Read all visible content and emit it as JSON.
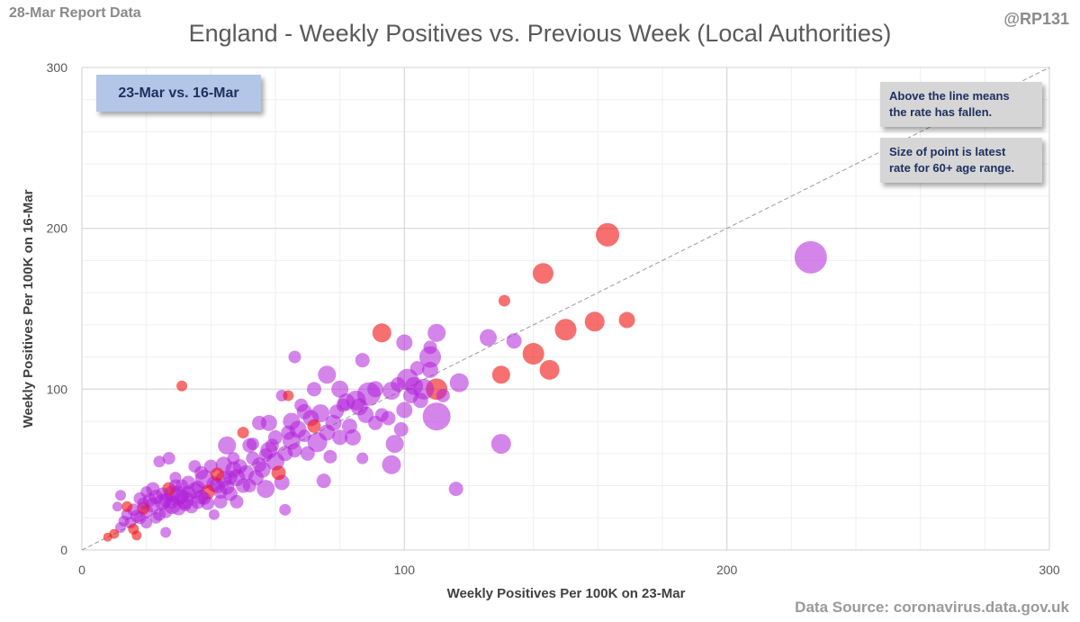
{
  "header": {
    "report_label": "28-Mar Report Data",
    "handle": "@RP131",
    "title": "England - Weekly Positives vs. Previous Week (Local Authorities)"
  },
  "footer": {
    "source": "Data Source: coronavirus.data.gov.uk"
  },
  "annotations": {
    "date_range": "23-Mar vs. 16-Mar",
    "note_above_line": [
      "Above the line means",
      "the rate has fallen."
    ],
    "note_size": [
      "Size of point is latest",
      "rate for 60+ age range."
    ]
  },
  "colors": {
    "purple": "#b020d8",
    "red": "#f01010",
    "grid_major": "#d9d9d9",
    "grid_minor": "#efefef",
    "diagonal": "#9a9a9a"
  },
  "chart_data": {
    "type": "scatter",
    "title": "England - Weekly Positives vs. Previous Week (Local Authorities)",
    "xlabel": "Weekly Positives Per 100K on 23-Mar",
    "ylabel": "Weekly Positives Per 100K on 16-Mar",
    "xlim": [
      0,
      300
    ],
    "ylim": [
      0,
      300
    ],
    "xticks": [
      0,
      100,
      200,
      300
    ],
    "yticks": [
      0,
      100,
      200,
      300
    ],
    "minor_step": 20,
    "reference_line": "y = x",
    "points": [
      {
        "x": 226,
        "y": 182,
        "s": 30,
        "c": "p"
      },
      {
        "x": 163,
        "y": 196,
        "s": 20,
        "c": "r"
      },
      {
        "x": 143,
        "y": 172,
        "s": 17,
        "c": "r"
      },
      {
        "x": 131,
        "y": 155,
        "s": 7,
        "c": "r"
      },
      {
        "x": 169,
        "y": 143,
        "s": 12,
        "c": "r"
      },
      {
        "x": 159,
        "y": 142,
        "s": 16,
        "c": "r"
      },
      {
        "x": 150,
        "y": 137,
        "s": 18,
        "c": "r"
      },
      {
        "x": 140,
        "y": 122,
        "s": 18,
        "c": "r"
      },
      {
        "x": 145,
        "y": 112,
        "s": 16,
        "c": "r"
      },
      {
        "x": 130,
        "y": 109,
        "s": 14,
        "c": "r"
      },
      {
        "x": 93,
        "y": 135,
        "s": 15,
        "c": "r"
      },
      {
        "x": 110,
        "y": 100,
        "s": 18,
        "c": "r"
      },
      {
        "x": 31,
        "y": 102,
        "s": 6,
        "c": "r"
      },
      {
        "x": 130,
        "y": 66,
        "s": 16,
        "c": "p"
      },
      {
        "x": 116,
        "y": 38,
        "s": 10,
        "c": "p"
      },
      {
        "x": 110,
        "y": 83,
        "s": 25,
        "c": "p"
      },
      {
        "x": 108,
        "y": 120,
        "s": 18,
        "c": "p"
      },
      {
        "x": 106,
        "y": 100,
        "s": 17,
        "c": "p"
      },
      {
        "x": 101,
        "y": 106,
        "s": 18,
        "c": "p"
      },
      {
        "x": 100,
        "y": 129,
        "s": 12,
        "c": "p"
      },
      {
        "x": 110,
        "y": 135,
        "s": 14,
        "c": "p"
      },
      {
        "x": 126,
        "y": 132,
        "s": 13,
        "c": "p"
      },
      {
        "x": 134,
        "y": 130,
        "s": 11,
        "c": "p"
      },
      {
        "x": 117,
        "y": 104,
        "s": 15,
        "c": "p"
      },
      {
        "x": 96,
        "y": 99,
        "s": 14,
        "c": "p"
      },
      {
        "x": 89,
        "y": 97,
        "s": 20,
        "c": "p"
      },
      {
        "x": 99,
        "y": 75,
        "s": 10,
        "c": "p"
      },
      {
        "x": 97,
        "y": 66,
        "s": 14,
        "c": "p"
      },
      {
        "x": 96,
        "y": 53,
        "s": 15,
        "c": "p"
      },
      {
        "x": 76,
        "y": 109,
        "s": 14,
        "c": "p"
      },
      {
        "x": 80,
        "y": 100,
        "s": 13,
        "c": "p"
      },
      {
        "x": 88,
        "y": 84,
        "s": 12,
        "c": "p"
      },
      {
        "x": 87,
        "y": 118,
        "s": 10,
        "c": "p"
      },
      {
        "x": 66,
        "y": 120,
        "s": 8,
        "c": "p"
      },
      {
        "x": 72,
        "y": 100,
        "s": 10,
        "c": "p"
      },
      {
        "x": 73,
        "y": 67,
        "s": 16,
        "c": "p"
      },
      {
        "x": 77,
        "y": 58,
        "s": 9,
        "c": "p"
      },
      {
        "x": 75,
        "y": 43,
        "s": 10,
        "c": "p"
      },
      {
        "x": 62,
        "y": 42,
        "s": 11,
        "c": "p"
      },
      {
        "x": 57,
        "y": 38,
        "s": 14,
        "c": "p"
      },
      {
        "x": 63,
        "y": 25,
        "s": 7,
        "c": "p"
      },
      {
        "x": 87,
        "y": 57,
        "s": 7,
        "c": "p"
      },
      {
        "x": 85,
        "y": 93,
        "s": 16,
        "c": "p"
      },
      {
        "x": 82,
        "y": 92,
        "s": 13,
        "c": "p"
      },
      {
        "x": 65,
        "y": 80,
        "s": 13,
        "c": "p"
      },
      {
        "x": 60,
        "y": 55,
        "s": 14,
        "c": "p"
      },
      {
        "x": 52,
        "y": 65,
        "s": 10,
        "c": "p"
      },
      {
        "x": 45,
        "y": 65,
        "s": 14,
        "c": "p"
      },
      {
        "x": 47,
        "y": 50,
        "s": 12,
        "c": "p"
      },
      {
        "x": 38,
        "y": 44,
        "s": 15,
        "c": "p"
      },
      {
        "x": 35,
        "y": 37,
        "s": 12,
        "c": "p"
      },
      {
        "x": 30,
        "y": 34,
        "s": 15,
        "c": "p"
      },
      {
        "x": 32,
        "y": 31,
        "s": 14,
        "c": "p"
      },
      {
        "x": 28,
        "y": 28,
        "s": 14,
        "c": "p"
      },
      {
        "x": 25,
        "y": 30,
        "s": 12,
        "c": "p"
      },
      {
        "x": 22,
        "y": 28,
        "s": 11,
        "c": "p"
      },
      {
        "x": 20,
        "y": 24,
        "s": 9,
        "c": "p"
      },
      {
        "x": 18,
        "y": 20,
        "s": 8,
        "c": "p"
      },
      {
        "x": 15,
        "y": 17,
        "s": 7,
        "c": "p"
      },
      {
        "x": 12,
        "y": 14,
        "s": 6,
        "c": "p"
      },
      {
        "x": 10,
        "y": 10,
        "s": 5,
        "c": "r"
      },
      {
        "x": 8,
        "y": 8,
        "s": 4,
        "c": "r"
      },
      {
        "x": 26,
        "y": 11,
        "s": 6,
        "c": "p"
      },
      {
        "x": 17,
        "y": 9,
        "s": 5,
        "c": "r"
      },
      {
        "x": 12,
        "y": 34,
        "s": 6,
        "c": "p"
      },
      {
        "x": 20,
        "y": 36,
        "s": 7,
        "c": "p"
      },
      {
        "x": 24,
        "y": 55,
        "s": 7,
        "c": "p"
      },
      {
        "x": 27,
        "y": 57,
        "s": 8,
        "c": "p"
      },
      {
        "x": 37,
        "y": 48,
        "s": 9,
        "c": "p"
      },
      {
        "x": 41,
        "y": 22,
        "s": 6,
        "c": "p"
      },
      {
        "x": 42,
        "y": 40,
        "s": 11,
        "c": "p"
      },
      {
        "x": 44,
        "y": 53,
        "s": 12,
        "c": "p"
      },
      {
        "x": 48,
        "y": 45,
        "s": 13,
        "c": "p"
      },
      {
        "x": 50,
        "y": 40,
        "s": 10,
        "c": "p"
      },
      {
        "x": 50,
        "y": 73,
        "s": 7,
        "c": "r"
      },
      {
        "x": 55,
        "y": 79,
        "s": 10,
        "c": "p"
      },
      {
        "x": 58,
        "y": 79,
        "s": 12,
        "c": "p"
      },
      {
        "x": 62,
        "y": 96,
        "s": 7,
        "c": "p"
      },
      {
        "x": 64,
        "y": 96,
        "s": 6,
        "c": "r"
      },
      {
        "x": 58,
        "y": 62,
        "s": 13,
        "c": "p"
      },
      {
        "x": 63,
        "y": 60,
        "s": 11,
        "c": "p"
      },
      {
        "x": 65,
        "y": 68,
        "s": 14,
        "c": "p"
      },
      {
        "x": 67,
        "y": 75,
        "s": 13,
        "c": "p"
      },
      {
        "x": 69,
        "y": 86,
        "s": 11,
        "c": "p"
      },
      {
        "x": 71,
        "y": 82,
        "s": 12,
        "c": "p"
      },
      {
        "x": 74,
        "y": 85,
        "s": 14,
        "c": "p"
      },
      {
        "x": 78,
        "y": 79,
        "s": 12,
        "c": "p"
      },
      {
        "x": 80,
        "y": 70,
        "s": 11,
        "c": "p"
      },
      {
        "x": 81,
        "y": 90,
        "s": 9,
        "c": "p"
      },
      {
        "x": 84,
        "y": 70,
        "s": 12,
        "c": "p"
      },
      {
        "x": 91,
        "y": 79,
        "s": 10,
        "c": "p"
      },
      {
        "x": 93,
        "y": 84,
        "s": 9,
        "c": "p"
      },
      {
        "x": 100,
        "y": 87,
        "s": 12,
        "c": "p"
      },
      {
        "x": 103,
        "y": 102,
        "s": 14,
        "c": "p"
      },
      {
        "x": 105,
        "y": 93,
        "s": 11,
        "c": "p"
      },
      {
        "x": 108,
        "y": 112,
        "s": 12,
        "c": "p"
      },
      {
        "x": 108,
        "y": 126,
        "s": 9,
        "c": "p"
      },
      {
        "x": 98,
        "y": 103,
        "s": 10,
        "c": "p"
      },
      {
        "x": 91,
        "y": 100,
        "s": 12,
        "c": "p"
      },
      {
        "x": 70,
        "y": 60,
        "s": 10,
        "c": "p"
      },
      {
        "x": 68,
        "y": 90,
        "s": 9,
        "c": "p"
      },
      {
        "x": 60,
        "y": 70,
        "s": 10,
        "c": "p"
      },
      {
        "x": 56,
        "y": 50,
        "s": 12,
        "c": "p"
      },
      {
        "x": 54,
        "y": 45,
        "s": 11,
        "c": "p"
      },
      {
        "x": 53,
        "y": 57,
        "s": 9,
        "c": "p"
      },
      {
        "x": 47,
        "y": 57,
        "s": 8,
        "c": "p"
      },
      {
        "x": 46,
        "y": 35,
        "s": 10,
        "c": "p"
      },
      {
        "x": 43,
        "y": 30,
        "s": 9,
        "c": "p"
      },
      {
        "x": 41,
        "y": 41,
        "s": 11,
        "c": "p"
      },
      {
        "x": 39,
        "y": 29,
        "s": 9,
        "c": "p"
      },
      {
        "x": 36,
        "y": 30,
        "s": 10,
        "c": "p"
      },
      {
        "x": 33,
        "y": 42,
        "s": 9,
        "c": "p"
      },
      {
        "x": 31,
        "y": 40,
        "s": 8,
        "c": "p"
      },
      {
        "x": 29,
        "y": 45,
        "s": 7,
        "c": "p"
      },
      {
        "x": 28,
        "y": 35,
        "s": 12,
        "c": "p"
      },
      {
        "x": 26,
        "y": 24,
        "s": 9,
        "c": "p"
      },
      {
        "x": 24,
        "y": 22,
        "s": 8,
        "c": "p"
      },
      {
        "x": 23,
        "y": 33,
        "s": 10,
        "c": "p"
      },
      {
        "x": 21,
        "y": 31,
        "s": 9,
        "c": "p"
      },
      {
        "x": 19,
        "y": 26,
        "s": 8,
        "c": "r"
      },
      {
        "x": 17,
        "y": 21,
        "s": 8,
        "c": "p"
      },
      {
        "x": 16,
        "y": 25,
        "s": 8,
        "c": "p"
      },
      {
        "x": 14,
        "y": 22,
        "s": 7,
        "c": "p"
      },
      {
        "x": 13,
        "y": 18,
        "s": 6,
        "c": "p"
      },
      {
        "x": 18,
        "y": 32,
        "s": 8,
        "c": "p"
      },
      {
        "x": 22,
        "y": 38,
        "s": 9,
        "c": "p"
      },
      {
        "x": 27,
        "y": 38,
        "s": 9,
        "c": "r"
      },
      {
        "x": 33,
        "y": 35,
        "s": 11,
        "c": "p"
      },
      {
        "x": 35,
        "y": 52,
        "s": 8,
        "c": "p"
      },
      {
        "x": 40,
        "y": 52,
        "s": 9,
        "c": "p"
      },
      {
        "x": 39,
        "y": 36,
        "s": 10,
        "c": "r"
      },
      {
        "x": 44,
        "y": 44,
        "s": 12,
        "c": "p"
      },
      {
        "x": 48,
        "y": 30,
        "s": 9,
        "c": "p"
      },
      {
        "x": 51,
        "y": 48,
        "s": 11,
        "c": "p"
      },
      {
        "x": 53,
        "y": 66,
        "s": 8,
        "c": "p"
      },
      {
        "x": 57,
        "y": 59,
        "s": 9,
        "c": "p"
      },
      {
        "x": 61,
        "y": 48,
        "s": 10,
        "c": "r"
      },
      {
        "x": 64,
        "y": 73,
        "s": 10,
        "c": "p"
      },
      {
        "x": 69,
        "y": 71,
        "s": 8,
        "c": "p"
      },
      {
        "x": 72,
        "y": 77,
        "s": 9,
        "c": "r"
      },
      {
        "x": 76,
        "y": 73,
        "s": 12,
        "c": "p"
      },
      {
        "x": 79,
        "y": 86,
        "s": 10,
        "c": "p"
      },
      {
        "x": 83,
        "y": 77,
        "s": 11,
        "c": "p"
      },
      {
        "x": 86,
        "y": 89,
        "s": 13,
        "c": "p"
      },
      {
        "x": 95,
        "y": 82,
        "s": 10,
        "c": "p"
      },
      {
        "x": 102,
        "y": 96,
        "s": 11,
        "c": "p"
      },
      {
        "x": 112,
        "y": 96,
        "s": 9,
        "c": "p"
      },
      {
        "x": 104,
        "y": 113,
        "s": 10,
        "c": "p"
      },
      {
        "x": 30,
        "y": 26,
        "s": 10,
        "c": "p"
      },
      {
        "x": 34,
        "y": 27,
        "s": 9,
        "c": "p"
      },
      {
        "x": 37,
        "y": 33,
        "s": 10,
        "c": "p"
      },
      {
        "x": 42,
        "y": 47,
        "s": 9,
        "c": "r"
      },
      {
        "x": 45,
        "y": 39,
        "s": 10,
        "c": "p"
      },
      {
        "x": 49,
        "y": 52,
        "s": 10,
        "c": "p"
      },
      {
        "x": 52,
        "y": 40,
        "s": 9,
        "c": "p"
      },
      {
        "x": 55,
        "y": 53,
        "s": 10,
        "c": "p"
      },
      {
        "x": 59,
        "y": 65,
        "s": 9,
        "c": "p"
      },
      {
        "x": 66,
        "y": 62,
        "s": 10,
        "c": "p"
      },
      {
        "x": 20,
        "y": 17,
        "s": 7,
        "c": "p"
      },
      {
        "x": 23,
        "y": 20,
        "s": 7,
        "c": "p"
      },
      {
        "x": 25,
        "y": 35,
        "s": 8,
        "c": "p"
      },
      {
        "x": 28,
        "y": 30,
        "s": 9,
        "c": "p"
      },
      {
        "x": 31,
        "y": 33,
        "s": 10,
        "c": "p"
      },
      {
        "x": 36,
        "y": 39,
        "s": 9,
        "c": "p"
      },
      {
        "x": 38,
        "y": 32,
        "s": 8,
        "c": "p"
      },
      {
        "x": 43,
        "y": 36,
        "s": 9,
        "c": "p"
      },
      {
        "x": 46,
        "y": 45,
        "s": 10,
        "c": "p"
      },
      {
        "x": 26,
        "y": 31,
        "s": 9,
        "c": "p"
      },
      {
        "x": 29,
        "y": 40,
        "s": 8,
        "c": "p"
      },
      {
        "x": 32,
        "y": 28,
        "s": 8,
        "c": "p"
      },
      {
        "x": 19,
        "y": 29,
        "s": 7,
        "c": "p"
      },
      {
        "x": 16,
        "y": 13,
        "s": 6,
        "c": "r"
      },
      {
        "x": 11,
        "y": 27,
        "s": 5,
        "c": "p"
      },
      {
        "x": 14,
        "y": 27,
        "s": 6,
        "c": "r"
      }
    ]
  }
}
